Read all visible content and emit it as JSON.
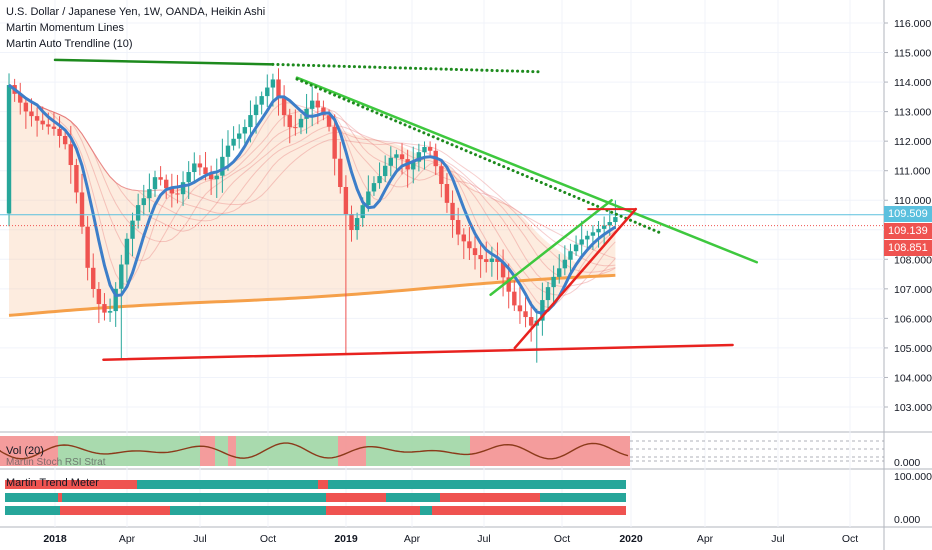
{
  "legend": {
    "title": "U.S. Dollar / Japanese Yen, 1W, OANDA, Heikin Ashi",
    "indicator1": "Martin Momentum Lines",
    "indicator2": "Martin Auto Trendline (10)"
  },
  "subpanels": {
    "vol_label": "Vol (20)",
    "overlap_label": "Martin Stoch RSI Strat",
    "trend_label": "Martin Trend Meter"
  },
  "price_tags": [
    {
      "value": "109.509",
      "color": "#5bc0de"
    },
    {
      "value": "109.139",
      "color": "#ef5350"
    },
    {
      "value": "108.851",
      "color": "#ef5350"
    }
  ],
  "colors": {
    "up": "#26a69a",
    "down": "#ef5350",
    "ema": "#3d7ec9",
    "sma": "#f5a04a",
    "green_line": "#3ec83e",
    "dark_green": "#1d8a1d",
    "red_line": "#e8221f"
  },
  "chart_data": {
    "type": "candlestick",
    "title": "U.S. Dollar / Japanese Yen, 1W, OANDA, Heikin Ashi",
    "y_ticks": [
      "116.000",
      "115.000",
      "114.000",
      "113.000",
      "112.000",
      "111.000",
      "110.000",
      "109.000",
      "108.000",
      "107.000",
      "106.000",
      "105.000",
      "104.000",
      "103.000"
    ],
    "ylim": [
      102.0,
      116.5
    ],
    "x_ticks": [
      "2018",
      "Apr",
      "Jul",
      "Oct",
      "2019",
      "Apr",
      "Jul",
      "Oct",
      "2020",
      "Apr",
      "Jul",
      "Oct"
    ],
    "subpanel_ticks": [
      "100.000",
      "0.000"
    ],
    "vol_ticks": [
      "0.000"
    ],
    "trendlines": [
      {
        "name": "upper-resistance",
        "color": "#1d8a1d",
        "points": [
          [
            "2018-01",
            114.75
          ],
          [
            "2018-10",
            114.6
          ]
        ]
      },
      {
        "name": "dotted-resistance",
        "color": "#1d8a1d",
        "style": "dotted",
        "points": [
          [
            "2018-10",
            114.6
          ],
          [
            "2019-09",
            114.35
          ]
        ]
      },
      {
        "name": "descending-green",
        "color": "#3ec83e",
        "points": [
          [
            "2018-11",
            114.15
          ],
          [
            "2020-06",
            107.9
          ]
        ]
      },
      {
        "name": "dotted-descending",
        "color": "#1d8a1d",
        "style": "dotted",
        "points": [
          [
            "2018-11",
            114.1
          ],
          [
            "2020-02",
            108.9
          ]
        ]
      },
      {
        "name": "support-red",
        "color": "#e8221f",
        "points": [
          [
            "2018-03",
            104.6
          ],
          [
            "2020-05",
            105.1
          ]
        ]
      },
      {
        "name": "rising-red",
        "color": "#e8221f",
        "points": [
          [
            "2019-08",
            105.0
          ],
          [
            "2020-01",
            109.7
          ]
        ]
      },
      {
        "name": "rising-green",
        "color": "#3ec83e",
        "points": [
          [
            "2019-07",
            106.8
          ],
          [
            "2019-12",
            110.0
          ]
        ]
      }
    ]
  }
}
